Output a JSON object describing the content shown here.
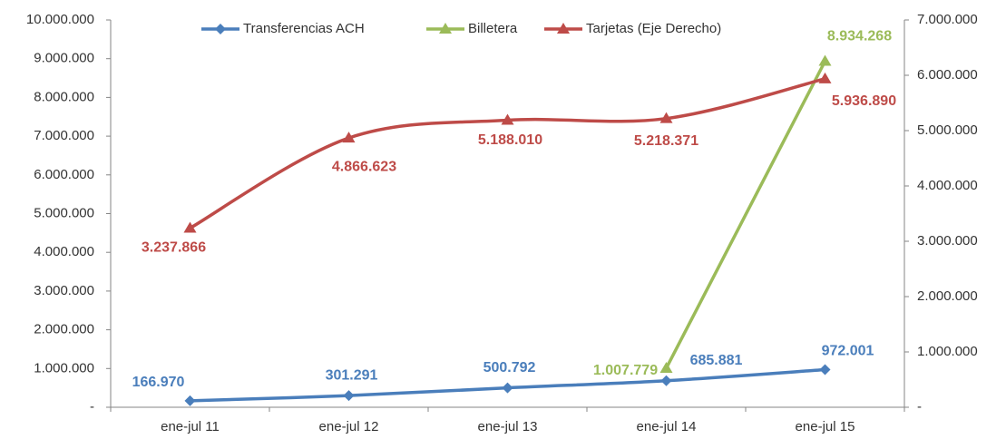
{
  "chart_data": {
    "type": "line",
    "smooth": true,
    "categories": [
      "ene-jul 11",
      "ene-jul 12",
      "ene-jul 13",
      "ene-jul 14",
      "ene-jul 15"
    ],
    "series": [
      {
        "name": "Transferencias ACH",
        "color": "#4a7ebb",
        "marker": "diamond",
        "values": [
          166970,
          301291,
          500792,
          685881,
          972001
        ],
        "value_labels": [
          "166.970",
          "301.291",
          "500.792",
          "685.881",
          "972.001"
        ]
      },
      {
        "name": "Billetera",
        "color": "#9bbb59",
        "marker": "triangle",
        "values": [
          null,
          null,
          null,
          1007779,
          8934268
        ],
        "value_labels": [
          null,
          null,
          null,
          "1.007.779",
          "8.934.268"
        ]
      },
      {
        "name": "Tarjetas (Eje Derecho)",
        "color": "#be4b48",
        "marker": "triangle",
        "axis": "y2",
        "values": [
          3237866,
          4866623,
          5188010,
          5218371,
          5936890
        ],
        "value_labels": [
          "3.237.866",
          "4.866.623",
          "5.188.010",
          "5.218.371",
          "5.936.890"
        ]
      }
    ],
    "ylim": [
      0,
      10000000
    ],
    "yticks": [
      {
        "value": 0,
        "label": "-"
      },
      {
        "value": 1000000,
        "label": "1.000.000"
      },
      {
        "value": 2000000,
        "label": "2.000.000"
      },
      {
        "value": 3000000,
        "label": "3.000.000"
      },
      {
        "value": 4000000,
        "label": "4.000.000"
      },
      {
        "value": 5000000,
        "label": "5.000.000"
      },
      {
        "value": 6000000,
        "label": "6.000.000"
      },
      {
        "value": 7000000,
        "label": "7.000.000"
      },
      {
        "value": 8000000,
        "label": "8.000.000"
      },
      {
        "value": 9000000,
        "label": "9.000.000"
      },
      {
        "value": 10000000,
        "label": "10.000.000"
      }
    ],
    "y2lim": [
      0,
      7000000
    ],
    "y2ticks": [
      {
        "value": 0,
        "label": "-"
      },
      {
        "value": 1000000,
        "label": "1.000.000"
      },
      {
        "value": 2000000,
        "label": "2.000.000"
      },
      {
        "value": 3000000,
        "label": "3.000.000"
      },
      {
        "value": 4000000,
        "label": "4.000.000"
      },
      {
        "value": 5000000,
        "label": "5.000.000"
      },
      {
        "value": 6000000,
        "label": "6.000.000"
      },
      {
        "value": 7000000,
        "label": "7.000.000"
      }
    ],
    "legend": "top"
  }
}
